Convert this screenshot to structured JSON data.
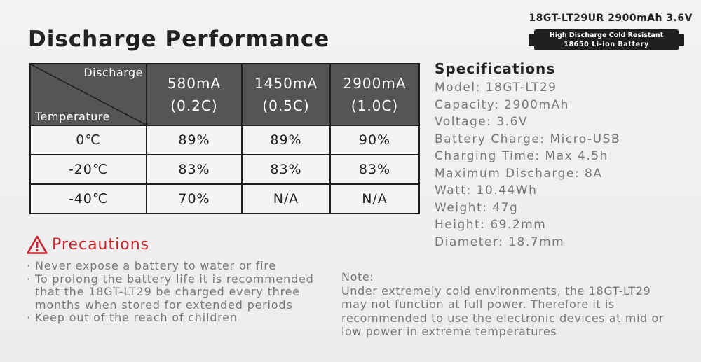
{
  "header": {
    "title": "Discharge Performance"
  },
  "product": {
    "model_line": "18GT-LT29UR 2900mAh 3.6V",
    "battery_label_line1": "High Discharge Cold Resistant",
    "battery_label_line2": "18650 Li-ion Battery"
  },
  "table": {
    "corner_top": "Discharge",
    "corner_bottom": "Temperature",
    "columns": [
      {
        "current": "580mA",
        "rate": "(0.2C)"
      },
      {
        "current": "1450mA",
        "rate": "(0.5C)"
      },
      {
        "current": "2900mA",
        "rate": "(1.0C)"
      }
    ],
    "rows": [
      {
        "temperature": "0℃",
        "values": [
          "89%",
          "89%",
          "90%"
        ]
      },
      {
        "temperature": "-20℃",
        "values": [
          "83%",
          "83%",
          "83%"
        ]
      },
      {
        "temperature": "-40℃",
        "values": [
          "70%",
          "N/A",
          "N/A"
        ]
      }
    ]
  },
  "specifications": {
    "title": "Specifications",
    "items": [
      "Model: 18GT-LT29",
      "Capacity: 2900mAh",
      "Voltage: 3.6V",
      "Battery Charge: Micro-USB",
      "Charging Time: Max 4.5h",
      "Maximum Discharge: 8A",
      "Watt: 10.44Wh",
      "Weight: 47g",
      "Height: 69.2mm",
      "Diameter: 18.7mm"
    ]
  },
  "precautions": {
    "title": "Precautions",
    "icon": "warning-icon",
    "accent_color": "#c8232a",
    "items": [
      "Never expose a battery to water or fire",
      "To prolong the battery life it is recommended that the 18GT-LT29 be charged every three months when stored for extended periods",
      "Keep out of the reach of children"
    ]
  },
  "note": {
    "label": "Note:",
    "text": "Under extremely cold environments, the 18GT-LT29 may not function at full power. Therefore it is recommended to use the electronic devices at mid or low power in extreme temperatures"
  }
}
